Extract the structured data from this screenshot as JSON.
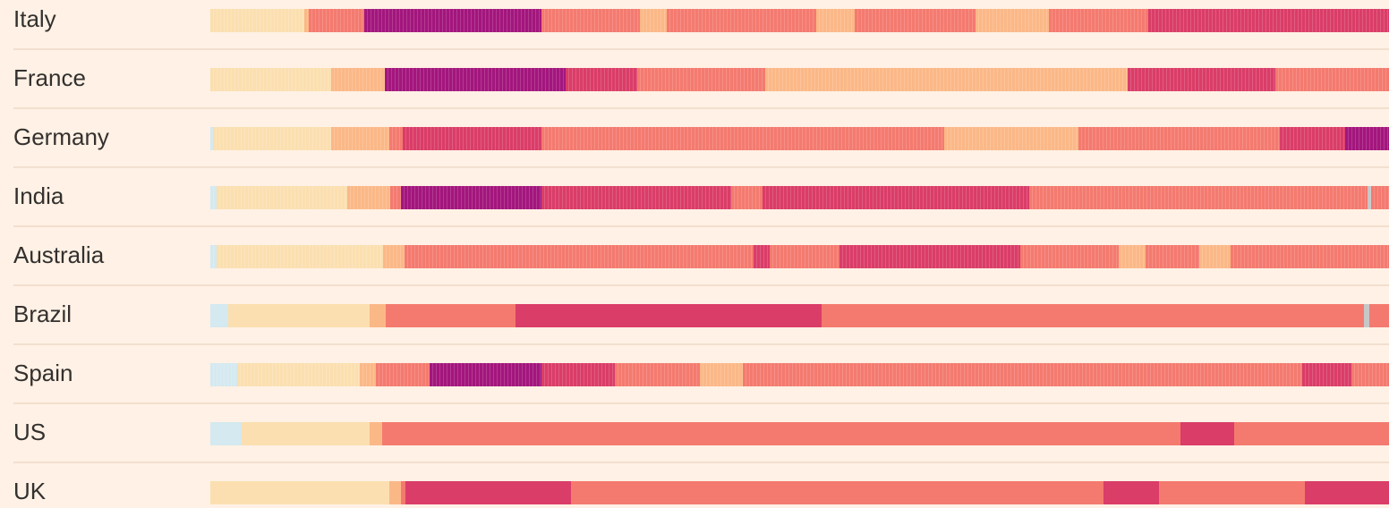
{
  "colors": {
    "background": "#fff1e5",
    "levels": [
      "#d4e9f0",
      "#fbdfb0",
      "#fbb887",
      "#f47a6f",
      "#da3d68",
      "#a3167d"
    ],
    "na": "#c7c7c7"
  },
  "chart_data": {
    "type": "heatmap",
    "title": "",
    "xlabel": "",
    "ylabel": "",
    "x_range": [
      0,
      1317
    ],
    "legend": [],
    "rows": [
      {
        "label": "Italy",
        "striped": true,
        "segments": [
          {
            "start": 0,
            "end": 105,
            "level": 1
          },
          {
            "start": 105,
            "end": 110,
            "level": 2
          },
          {
            "start": 110,
            "end": 172,
            "level": 3
          },
          {
            "start": 172,
            "end": 370,
            "level": 5
          },
          {
            "start": 370,
            "end": 480,
            "level": 3
          },
          {
            "start": 480,
            "end": 510,
            "level": 2
          },
          {
            "start": 510,
            "end": 677,
            "level": 3
          },
          {
            "start": 677,
            "end": 720,
            "level": 2
          },
          {
            "start": 720,
            "end": 855,
            "level": 3
          },
          {
            "start": 855,
            "end": 937,
            "level": 2
          },
          {
            "start": 937,
            "end": 1048,
            "level": 3
          },
          {
            "start": 1048,
            "end": 1317,
            "level": 4
          }
        ]
      },
      {
        "label": "France",
        "striped": true,
        "segments": [
          {
            "start": 0,
            "end": 135,
            "level": 1
          },
          {
            "start": 135,
            "end": 195,
            "level": 2
          },
          {
            "start": 195,
            "end": 397,
            "level": 5
          },
          {
            "start": 397,
            "end": 477,
            "level": 4
          },
          {
            "start": 477,
            "end": 620,
            "level": 3
          },
          {
            "start": 620,
            "end": 1025,
            "level": 2
          },
          {
            "start": 1025,
            "end": 1190,
            "level": 4
          },
          {
            "start": 1190,
            "end": 1317,
            "level": 3
          }
        ]
      },
      {
        "label": "Germany",
        "striped": true,
        "segments": [
          {
            "start": 0,
            "end": 3,
            "level": 0
          },
          {
            "start": 3,
            "end": 135,
            "level": 1
          },
          {
            "start": 135,
            "end": 200,
            "level": 2
          },
          {
            "start": 200,
            "end": 215,
            "level": 3
          },
          {
            "start": 215,
            "end": 370,
            "level": 4
          },
          {
            "start": 370,
            "end": 820,
            "level": 3
          },
          {
            "start": 820,
            "end": 970,
            "level": 2
          },
          {
            "start": 970,
            "end": 1195,
            "level": 3
          },
          {
            "start": 1195,
            "end": 1268,
            "level": 4
          },
          {
            "start": 1268,
            "end": 1317,
            "level": 5
          }
        ]
      },
      {
        "label": "India",
        "striped": true,
        "segments": [
          {
            "start": 0,
            "end": 7,
            "level": 0
          },
          {
            "start": 7,
            "end": 153,
            "level": 1
          },
          {
            "start": 153,
            "end": 201,
            "level": 2
          },
          {
            "start": 201,
            "end": 213,
            "level": 3
          },
          {
            "start": 213,
            "end": 370,
            "level": 5
          },
          {
            "start": 370,
            "end": 582,
            "level": 4
          },
          {
            "start": 582,
            "end": 617,
            "level": 3
          },
          {
            "start": 617,
            "end": 915,
            "level": 4
          },
          {
            "start": 915,
            "end": 1293,
            "level": 3
          },
          {
            "start": 1293,
            "end": 1297,
            "level": "na"
          },
          {
            "start": 1297,
            "end": 1317,
            "level": 3
          }
        ]
      },
      {
        "label": "Australia",
        "striped": true,
        "segments": [
          {
            "start": 0,
            "end": 7,
            "level": 0
          },
          {
            "start": 7,
            "end": 193,
            "level": 1
          },
          {
            "start": 193,
            "end": 217,
            "level": 2
          },
          {
            "start": 217,
            "end": 607,
            "level": 3
          },
          {
            "start": 607,
            "end": 625,
            "level": 4
          },
          {
            "start": 625,
            "end": 703,
            "level": 3
          },
          {
            "start": 703,
            "end": 905,
            "level": 4
          },
          {
            "start": 905,
            "end": 1015,
            "level": 3
          },
          {
            "start": 1015,
            "end": 1045,
            "level": 2
          },
          {
            "start": 1045,
            "end": 1105,
            "level": 3
          },
          {
            "start": 1105,
            "end": 1140,
            "level": 2
          },
          {
            "start": 1140,
            "end": 1317,
            "level": 3
          }
        ]
      },
      {
        "label": "Brazil",
        "striped": false,
        "segments": [
          {
            "start": 0,
            "end": 20,
            "level": 0
          },
          {
            "start": 20,
            "end": 178,
            "level": 1
          },
          {
            "start": 178,
            "end": 196,
            "level": 2
          },
          {
            "start": 196,
            "end": 341,
            "level": 3
          },
          {
            "start": 341,
            "end": 683,
            "level": 4
          },
          {
            "start": 683,
            "end": 1289,
            "level": 3
          },
          {
            "start": 1289,
            "end": 1295,
            "level": "na"
          },
          {
            "start": 1295,
            "end": 1317,
            "level": 3
          }
        ]
      },
      {
        "label": "Spain",
        "striped": true,
        "segments": [
          {
            "start": 0,
            "end": 30,
            "level": 0
          },
          {
            "start": 30,
            "end": 167,
            "level": 1
          },
          {
            "start": 167,
            "end": 185,
            "level": 2
          },
          {
            "start": 185,
            "end": 245,
            "level": 3
          },
          {
            "start": 245,
            "end": 370,
            "level": 5
          },
          {
            "start": 370,
            "end": 452,
            "level": 4
          },
          {
            "start": 452,
            "end": 547,
            "level": 3
          },
          {
            "start": 547,
            "end": 595,
            "level": 2
          },
          {
            "start": 595,
            "end": 1220,
            "level": 3
          },
          {
            "start": 1220,
            "end": 1275,
            "level": 4
          },
          {
            "start": 1275,
            "end": 1317,
            "level": 3
          }
        ]
      },
      {
        "label": "US",
        "striped": false,
        "segments": [
          {
            "start": 0,
            "end": 35,
            "level": 0
          },
          {
            "start": 35,
            "end": 178,
            "level": 1
          },
          {
            "start": 178,
            "end": 192,
            "level": 2
          },
          {
            "start": 192,
            "end": 1084,
            "level": 3
          },
          {
            "start": 1084,
            "end": 1144,
            "level": 4
          },
          {
            "start": 1144,
            "end": 1317,
            "level": 3
          }
        ]
      },
      {
        "label": "UK",
        "striped": false,
        "segments": [
          {
            "start": 0,
            "end": 200,
            "level": 1
          },
          {
            "start": 200,
            "end": 213,
            "level": 2
          },
          {
            "start": 213,
            "end": 218,
            "level": 3
          },
          {
            "start": 218,
            "end": 403,
            "level": 4
          },
          {
            "start": 403,
            "end": 998,
            "level": 3
          },
          {
            "start": 998,
            "end": 1060,
            "level": 4
          },
          {
            "start": 1060,
            "end": 1223,
            "level": 3
          },
          {
            "start": 1223,
            "end": 1229,
            "level": 4
          },
          {
            "start": 1229,
            "end": 1317,
            "level": 4
          }
        ]
      }
    ]
  }
}
